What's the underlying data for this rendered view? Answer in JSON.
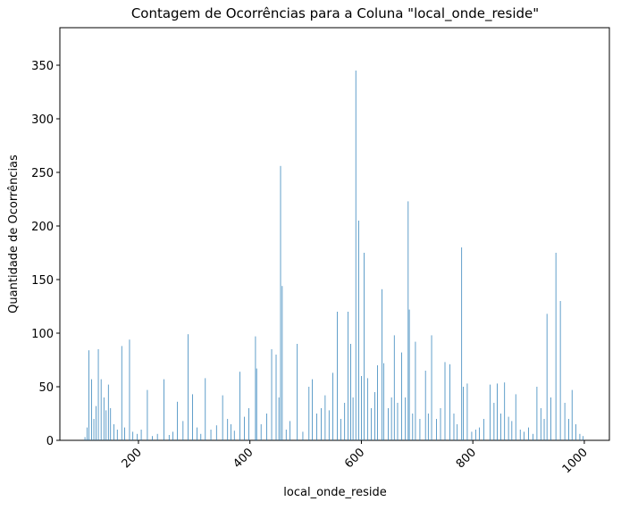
{
  "chart_data": {
    "type": "bar",
    "title": "Contagem de Ocorrências para a Coluna \"local_onde_reside\"",
    "xlabel": "local_onde_reside",
    "ylabel": "Quantidade de Ocorrências",
    "color": "#1f77b4",
    "x": [
      104,
      108,
      111,
      116,
      120,
      124,
      128,
      133,
      138,
      142,
      146,
      150,
      156,
      162,
      170,
      175,
      184,
      190,
      198,
      205,
      216,
      225,
      234,
      246,
      255,
      262,
      270,
      280,
      289,
      297,
      305,
      312,
      320,
      330,
      340,
      351,
      360,
      366,
      372,
      382,
      390,
      398,
      410,
      412,
      420,
      430,
      439,
      447,
      452,
      455,
      458,
      465,
      472,
      485,
      495,
      506,
      512,
      520,
      528,
      535,
      542,
      549,
      557,
      563,
      570,
      576,
      581,
      585,
      590,
      595,
      600,
      605,
      611,
      618,
      624,
      629,
      637,
      640,
      648,
      654,
      659,
      665,
      672,
      679,
      684,
      686,
      692,
      697,
      705,
      715,
      720,
      726,
      735,
      742,
      750,
      759,
      766,
      772,
      780,
      783,
      790,
      798,
      805,
      812,
      820,
      831,
      838,
      844,
      850,
      857,
      864,
      870,
      877,
      885,
      892,
      900,
      908,
      915,
      922,
      928,
      933,
      940,
      949,
      957,
      965,
      972,
      978,
      985,
      992,
      998
    ],
    "values": [
      3,
      12,
      84,
      57,
      20,
      32,
      85,
      57,
      40,
      28,
      52,
      30,
      15,
      10,
      88,
      12,
      94,
      8,
      6,
      10,
      47,
      4,
      6,
      57,
      5,
      8,
      36,
      18,
      99,
      43,
      12,
      6,
      58,
      10,
      14,
      42,
      20,
      15,
      9,
      64,
      22,
      30,
      97,
      67,
      15,
      25,
      85,
      80,
      40,
      256,
      144,
      10,
      18,
      90,
      8,
      50,
      57,
      25,
      30,
      42,
      28,
      63,
      120,
      20,
      35,
      120,
      90,
      40,
      345,
      205,
      60,
      175,
      58,
      30,
      45,
      70,
      141,
      72,
      30,
      40,
      98,
      35,
      82,
      40,
      223,
      122,
      25,
      92,
      20,
      65,
      25,
      98,
      20,
      30,
      73,
      71,
      25,
      15,
      180,
      50,
      53,
      8,
      10,
      12,
      20,
      52,
      35,
      53,
      25,
      54,
      22,
      18,
      43,
      10,
      8,
      12,
      6,
      50,
      30,
      20,
      118,
      40,
      175,
      130,
      35,
      20,
      47,
      15,
      6,
      4
    ],
    "xlim": [
      59,
      1045
    ],
    "ylim": [
      0,
      385
    ],
    "xticks": [
      200,
      400,
      600,
      800,
      1000
    ],
    "yticks": [
      0,
      50,
      100,
      150,
      200,
      250,
      300,
      350
    ]
  }
}
